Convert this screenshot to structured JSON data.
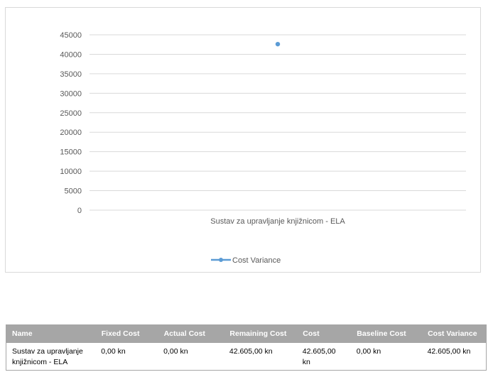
{
  "chart_data": {
    "type": "line",
    "categories": [
      "Sustav za upravljanje knjižnicom - ELA"
    ],
    "series": [
      {
        "name": "Cost Variance",
        "values": [
          42605
        ],
        "color": "#5b9bd5"
      }
    ],
    "ylim": [
      0,
      45000
    ],
    "yticks": [
      0,
      5000,
      10000,
      15000,
      20000,
      25000,
      30000,
      35000,
      40000,
      45000
    ],
    "grid": true,
    "legend": "bottom",
    "title": "",
    "xlabel": "",
    "ylabel": ""
  },
  "table": {
    "columns": [
      "Name",
      "Fixed Cost",
      "Actual Cost",
      "Remaining Cost",
      "Cost",
      "Baseline Cost",
      "Cost Variance"
    ],
    "rows": [
      [
        "Sustav za upravljanje knjižnicom - ELA",
        "0,00 kn",
        "0,00 kn",
        "42.605,00 kn",
        "42.605,00 kn",
        "0,00 kn",
        "42.605,00 kn"
      ]
    ]
  }
}
